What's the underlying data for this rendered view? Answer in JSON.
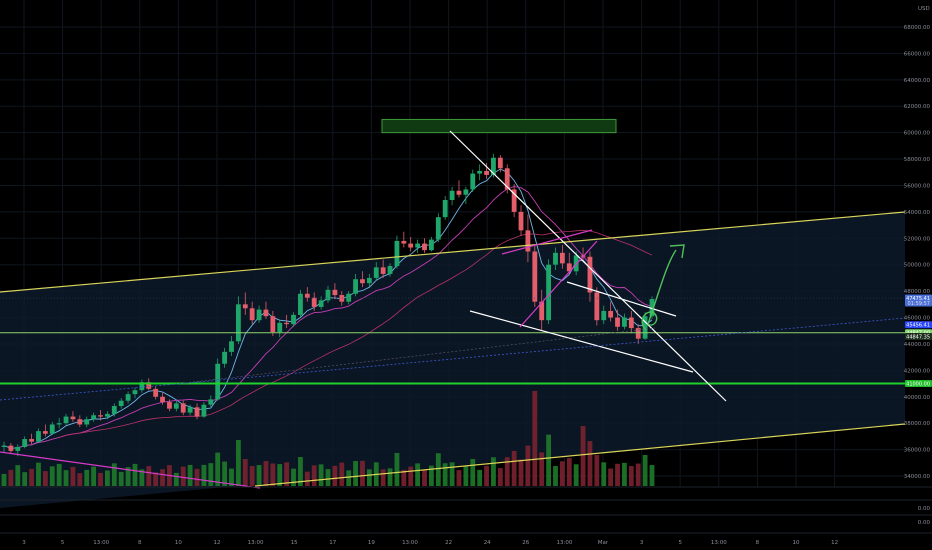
{
  "chart_data": {
    "type": "candlestick",
    "currency": "USD",
    "y_ticks": [
      "68000.00",
      "66000.00",
      "64000.00",
      "62000.00",
      "60000.00",
      "58000.00",
      "56000.00",
      "54000.00",
      "52000.00",
      "50000.00",
      "48000.00",
      "46000.00",
      "44000.00",
      "42000.00",
      "40000.00",
      "38000.00",
      "36000.00",
      "34000.00"
    ],
    "ylim": [
      33000,
      69500
    ],
    "x_ticks": [
      "3",
      "5",
      "13:00",
      "8",
      "10",
      "12",
      "13:00",
      "15",
      "17",
      "19",
      "13:00",
      "22",
      "24",
      "26",
      "13:00",
      "Mar",
      "3",
      "5",
      "13:00",
      "8",
      "10",
      "12"
    ],
    "price_tags": [
      {
        "label": "47475.41",
        "sub": "01:59:57",
        "value": 47475,
        "color": "#4a6fd6"
      },
      {
        "label": "45456.41",
        "value": 45456,
        "color": "#2a45ff"
      },
      {
        "label": "44847.00",
        "value": 44847,
        "color": "#7fd16a"
      },
      {
        "label": "44847.35",
        "value": 44560,
        "color": "#1f2f1f"
      },
      {
        "label": "41000.00",
        "value": 41000,
        "color": "#1fbf2a"
      }
    ],
    "oscillator_ticks": [
      "0.00",
      "0.00"
    ],
    "resistance_zone": [
      60000,
      61000
    ],
    "horizontal_levels": [
      44847,
      41000
    ],
    "candles": [
      [
        36200,
        36600,
        35800,
        36300
      ],
      [
        36300,
        36500,
        35700,
        35900
      ],
      [
        35900,
        36400,
        35500,
        36200
      ],
      [
        36200,
        37000,
        36100,
        36800
      ],
      [
        36800,
        37200,
        36400,
        36600
      ],
      [
        36600,
        37600,
        36500,
        37400
      ],
      [
        37400,
        37900,
        37000,
        37200
      ],
      [
        37200,
        38100,
        37100,
        37900
      ],
      [
        37900,
        38400,
        37600,
        38000
      ],
      [
        38000,
        38700,
        37800,
        38500
      ],
      [
        38500,
        38900,
        38100,
        38300
      ],
      [
        38300,
        38600,
        37700,
        37900
      ],
      [
        37900,
        38500,
        37700,
        38300
      ],
      [
        38300,
        38800,
        38100,
        38600
      ],
      [
        38600,
        39000,
        38200,
        38500
      ],
      [
        38500,
        38900,
        38300,
        38700
      ],
      [
        38700,
        39500,
        38500,
        39300
      ],
      [
        39300,
        39900,
        39100,
        39700
      ],
      [
        39700,
        40400,
        39500,
        40200
      ],
      [
        40200,
        40700,
        39900,
        40500
      ],
      [
        40500,
        41300,
        40300,
        41100
      ],
      [
        41100,
        41400,
        40500,
        40600
      ],
      [
        40600,
        40800,
        39800,
        40000
      ],
      [
        40000,
        40300,
        39400,
        39600
      ],
      [
        39600,
        39800,
        38900,
        39100
      ],
      [
        39100,
        39700,
        38900,
        39500
      ],
      [
        39500,
        39700,
        38600,
        38800
      ],
      [
        38800,
        39400,
        38600,
        39200
      ],
      [
        39200,
        39500,
        38300,
        38500
      ],
      [
        38500,
        39600,
        38400,
        39400
      ],
      [
        39400,
        40100,
        39200,
        39800
      ],
      [
        39800,
        42900,
        39700,
        42500
      ],
      [
        42500,
        43700,
        42200,
        43400
      ],
      [
        43400,
        44600,
        43100,
        44200
      ],
      [
        44200,
        47600,
        44000,
        47000
      ],
      [
        47000,
        47900,
        46200,
        46700
      ],
      [
        46700,
        47200,
        45500,
        45800
      ],
      [
        45800,
        46900,
        45600,
        46600
      ],
      [
        46600,
        47200,
        45900,
        46100
      ],
      [
        46100,
        46500,
        44600,
        44900
      ],
      [
        44900,
        45800,
        44500,
        45600
      ],
      [
        45600,
        46200,
        45200,
        45500
      ],
      [
        45500,
        46400,
        45300,
        46200
      ],
      [
        46200,
        48100,
        46000,
        47800
      ],
      [
        47800,
        48300,
        47200,
        47500
      ],
      [
        47500,
        47900,
        46500,
        46800
      ],
      [
        46800,
        47600,
        46600,
        47300
      ],
      [
        47300,
        48400,
        47100,
        48100
      ],
      [
        48100,
        48600,
        47400,
        47700
      ],
      [
        47700,
        48000,
        46900,
        47200
      ],
      [
        47200,
        48000,
        47000,
        47800
      ],
      [
        47800,
        49300,
        47600,
        48900
      ],
      [
        48900,
        49500,
        48300,
        48600
      ],
      [
        48600,
        49300,
        48300,
        49000
      ],
      [
        49000,
        50200,
        48800,
        49800
      ],
      [
        49800,
        50400,
        49000,
        49300
      ],
      [
        49300,
        50100,
        49100,
        49900
      ],
      [
        49900,
        52200,
        49700,
        51800
      ],
      [
        51800,
        52500,
        51300,
        51600
      ],
      [
        51600,
        52100,
        51000,
        51300
      ],
      [
        51300,
        51900,
        50900,
        51600
      ],
      [
        51600,
        52000,
        50900,
        51100
      ],
      [
        51100,
        52100,
        51000,
        51900
      ],
      [
        51900,
        53900,
        51700,
        53600
      ],
      [
        53600,
        55200,
        53400,
        54900
      ],
      [
        54900,
        55900,
        54500,
        55600
      ],
      [
        55600,
        56400,
        55100,
        55300
      ],
      [
        55300,
        55900,
        54600,
        55700
      ],
      [
        55700,
        57200,
        55500,
        56900
      ],
      [
        56900,
        57600,
        56400,
        57100
      ],
      [
        57100,
        57700,
        56500,
        56800
      ],
      [
        56800,
        58400,
        56600,
        58100
      ],
      [
        58100,
        58300,
        57000,
        57300
      ],
      [
        57300,
        57600,
        55400,
        55700
      ],
      [
        55700,
        56100,
        53600,
        54000
      ],
      [
        54000,
        54500,
        52200,
        52600
      ],
      [
        52600,
        53800,
        50200,
        51000
      ],
      [
        51000,
        51500,
        46800,
        47200
      ],
      [
        47200,
        48100,
        45000,
        45800
      ],
      [
        45800,
        50400,
        45500,
        50000
      ],
      [
        50000,
        51300,
        49600,
        50900
      ],
      [
        50900,
        51500,
        49700,
        50100
      ],
      [
        50100,
        50900,
        49200,
        49500
      ],
      [
        49500,
        51000,
        49200,
        50700
      ],
      [
        50700,
        51300,
        50300,
        50600
      ],
      [
        50600,
        51000,
        47200,
        47900
      ],
      [
        47900,
        48300,
        45400,
        45800
      ],
      [
        45800,
        46900,
        45500,
        46500
      ],
      [
        46500,
        47200,
        45700,
        46000
      ],
      [
        46000,
        46600,
        45000,
        45300
      ],
      [
        45300,
        46300,
        45100,
        46000
      ],
      [
        46000,
        46500,
        44800,
        45200
      ],
      [
        45200,
        45500,
        44000,
        44400
      ],
      [
        44400,
        46400,
        44300,
        46100
      ],
      [
        46100,
        47600,
        45900,
        47400
      ]
    ]
  }
}
